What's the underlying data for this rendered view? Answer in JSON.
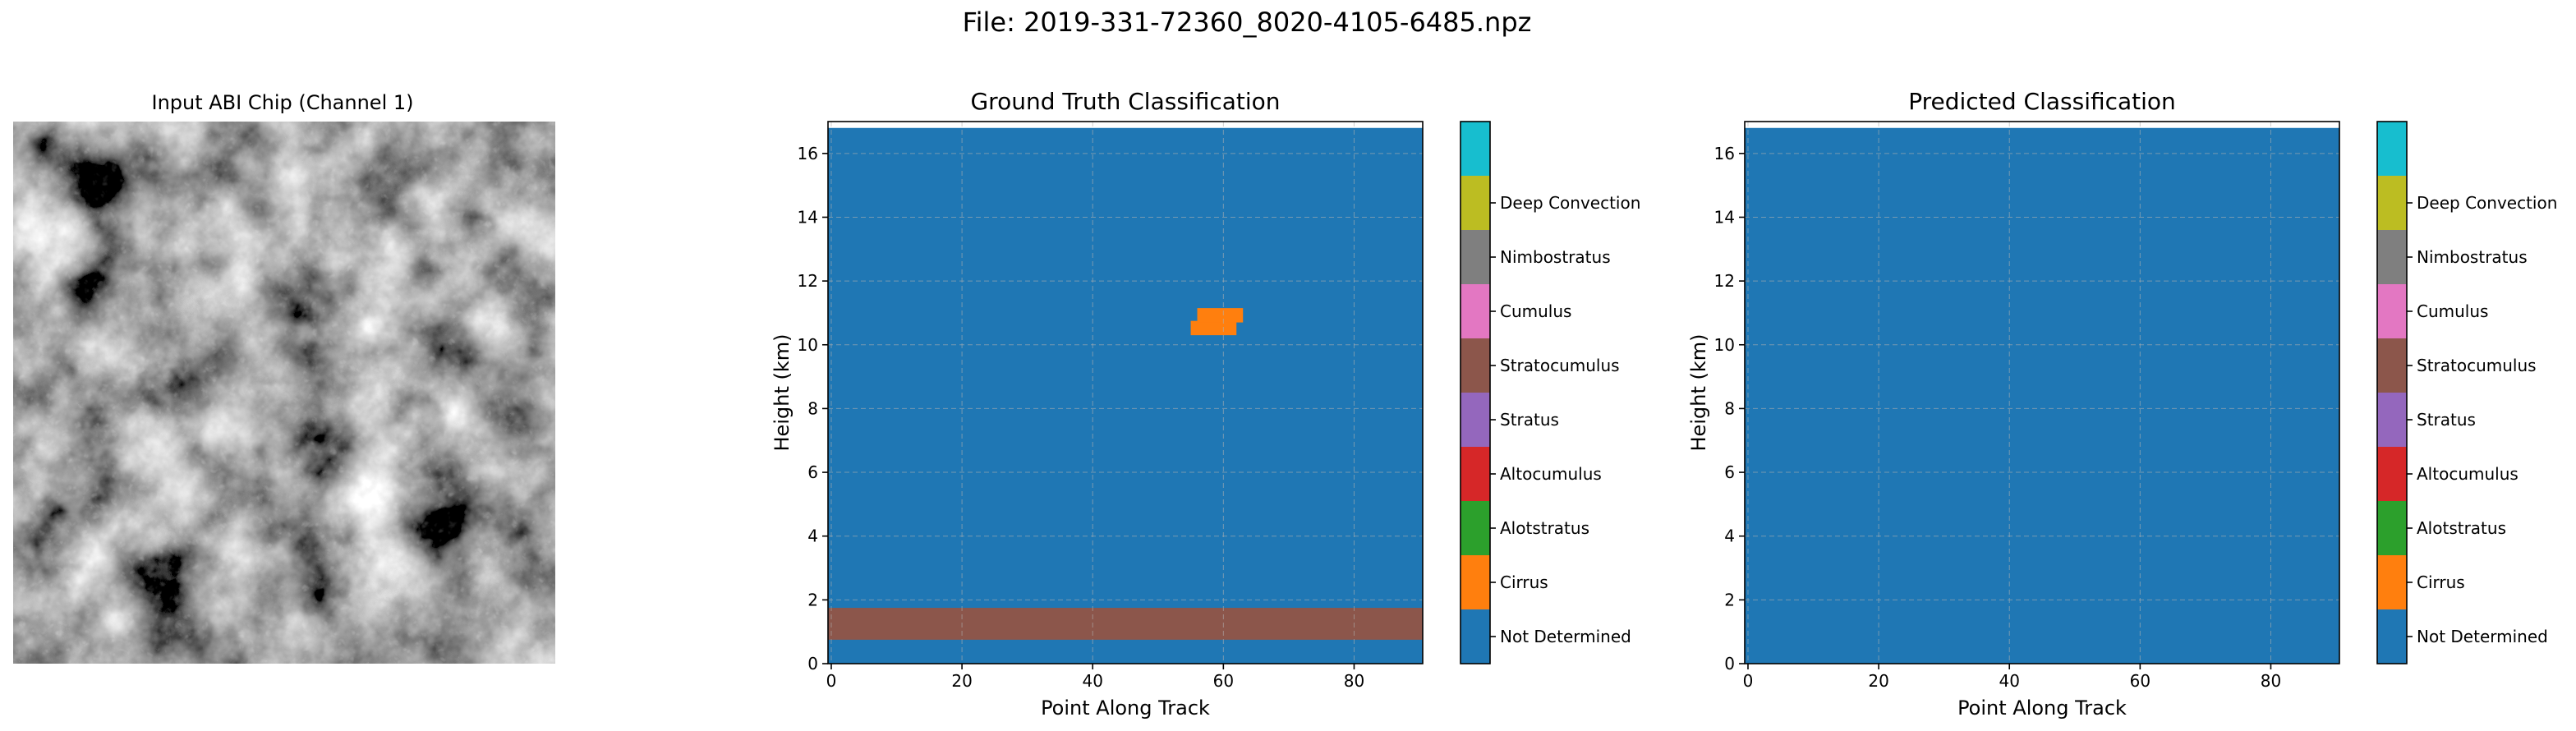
{
  "figure": {
    "suptitle": "File: 2019-331-72360_8020-4105-6485.npz"
  },
  "input_panel": {
    "title": "Input ABI Chip (Channel 1)"
  },
  "colorbar": {
    "classes": [
      {
        "label": "Not Determined",
        "color": "#1f77b4"
      },
      {
        "label": "Cirrus",
        "color": "#ff7f0e"
      },
      {
        "label": "Alotstratus",
        "color": "#2ca02c"
      },
      {
        "label": "Altocumulus",
        "color": "#d62728"
      },
      {
        "label": "Stratus",
        "color": "#9467bd"
      },
      {
        "label": "Stratocumulus",
        "color": "#8c564b"
      },
      {
        "label": "Cumulus",
        "color": "#e377c2"
      },
      {
        "label": "Nimbostratus",
        "color": "#7f7f7f"
      },
      {
        "label": "Deep Convection",
        "color": "#bcbd22"
      },
      {
        "label": "",
        "color": "#17becf"
      }
    ]
  },
  "chart_data": [
    {
      "type": "heatmap",
      "title": "Ground Truth Classification",
      "xlabel": "Point Along Track",
      "ylabel": "Height (km)",
      "xlim": [
        -0.5,
        90.5
      ],
      "ylim": [
        0,
        17
      ],
      "xticks": [
        0,
        20,
        40,
        60,
        80
      ],
      "yticks": [
        0,
        2,
        4,
        6,
        8,
        10,
        12,
        14,
        16
      ],
      "grid": true,
      "data_top": 16.8,
      "background_class": 0,
      "regions": [
        {
          "class": 5,
          "x0": -0.5,
          "x1": 90.5,
          "y0": 0.75,
          "y1": 1.75
        },
        {
          "class": 1,
          "x0": 55,
          "x1": 62,
          "y0": 10.3,
          "y1": 10.75
        },
        {
          "class": 1,
          "x0": 56,
          "x1": 63,
          "y0": 10.7,
          "y1": 11.15
        }
      ]
    },
    {
      "type": "heatmap",
      "title": "Predicted Classification",
      "xlabel": "Point Along Track",
      "ylabel": "Height (km)",
      "xlim": [
        -0.5,
        90.5
      ],
      "ylim": [
        0,
        17
      ],
      "xticks": [
        0,
        20,
        40,
        60,
        80
      ],
      "yticks": [
        0,
        2,
        4,
        6,
        8,
        10,
        12,
        14,
        16
      ],
      "grid": true,
      "data_top": 16.8,
      "background_class": 0,
      "regions": []
    }
  ]
}
